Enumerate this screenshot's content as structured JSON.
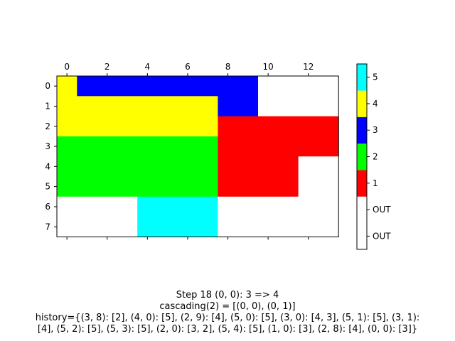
{
  "chart_data": {
    "type": "heatmap",
    "rows": 8,
    "cols": 14,
    "x_ticks": [
      0,
      2,
      4,
      6,
      8,
      10,
      12
    ],
    "y_ticks": [
      0,
      1,
      2,
      3,
      4,
      5,
      6,
      7
    ],
    "x_axis_position": "top",
    "grid": false,
    "legend": "colorbar-right",
    "value_colors": {
      "-1": "#ffffff",
      "0": "#ffffff",
      "1": "#ff0000",
      "2": "#00ff00",
      "3": "#0000ff",
      "4": "#ffff00",
      "5": "#00ffff"
    },
    "matrix": [
      [
        4,
        3,
        3,
        3,
        3,
        3,
        3,
        3,
        3,
        3,
        0,
        0,
        0,
        0
      ],
      [
        4,
        4,
        4,
        4,
        4,
        4,
        4,
        4,
        3,
        3,
        0,
        0,
        0,
        0
      ],
      [
        4,
        4,
        4,
        4,
        4,
        4,
        4,
        4,
        1,
        1,
        1,
        1,
        1,
        1
      ],
      [
        2,
        2,
        2,
        2,
        2,
        2,
        2,
        2,
        1,
        1,
        1,
        1,
        1,
        1
      ],
      [
        2,
        2,
        2,
        2,
        2,
        2,
        2,
        2,
        1,
        1,
        1,
        1,
        0,
        0
      ],
      [
        2,
        2,
        2,
        2,
        2,
        2,
        2,
        2,
        1,
        1,
        1,
        1,
        0,
        0
      ],
      [
        0,
        0,
        0,
        0,
        5,
        5,
        5,
        5,
        0,
        0,
        0,
        0,
        0,
        0
      ],
      [
        0,
        0,
        0,
        0,
        5,
        5,
        5,
        5,
        0,
        0,
        0,
        0,
        0,
        0
      ]
    ],
    "colorbar": {
      "levels": [
        {
          "value": -1,
          "label": "OUT",
          "color": "#ffffff"
        },
        {
          "value": 0,
          "label": "OUT",
          "color": "#ffffff"
        },
        {
          "value": 1,
          "label": "1",
          "color": "#ff0000"
        },
        {
          "value": 2,
          "label": "2",
          "color": "#00ff00"
        },
        {
          "value": 3,
          "label": "3",
          "color": "#0000ff"
        },
        {
          "value": 4,
          "label": "4",
          "color": "#ffff00"
        },
        {
          "value": 5,
          "label": "5",
          "color": "#00ffff"
        }
      ]
    }
  },
  "caption": {
    "line1": "Step 18  (0, 0): 3 => 4",
    "line2": "cascading(2) = [(0, 0), (0, 1)]",
    "line3": "history={(3, 8): [2], (4, 0): [5], (2, 9): [4], (5, 0): [5], (3, 0): [4, 3], (5, 1): [5], (3, 1):",
    "line4": "[4], (5, 2): [5], (5, 3): [5], (2, 0): [3, 2], (5, 4): [5], (1, 0): [3], (2, 8): [4], (0, 0): [3]}"
  }
}
